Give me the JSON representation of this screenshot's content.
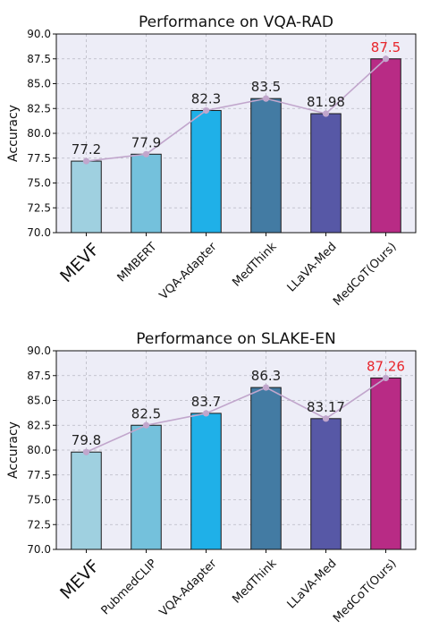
{
  "chart_data": [
    {
      "type": "bar",
      "title": "Performance on VQA-RAD",
      "ylabel": "Accuracy",
      "xlabel": "",
      "ylim": [
        70.0,
        90.0
      ],
      "yticks": [
        "70.0",
        "72.5",
        "75.0",
        "77.5",
        "80.0",
        "82.5",
        "85.0",
        "87.5",
        "90.0"
      ],
      "grid": true,
      "categories": [
        "MEVF",
        "MMBERT",
        "VQA-Adapter",
        "MedThink",
        "LLaVA-Med",
        "MedCoT(Ours)"
      ],
      "values": [
        77.2,
        77.9,
        82.3,
        83.5,
        81.98,
        87.5
      ],
      "value_labels": [
        "77.2",
        "77.9",
        "82.3",
        "83.5",
        "81.98",
        "87.5"
      ],
      "bar_colors": [
        "#9fd0e0",
        "#74c1dc",
        "#1fb0e8",
        "#437ba3",
        "#5758a6",
        "#b82b85"
      ],
      "label_colors": [
        "#222222",
        "#222222",
        "#222222",
        "#222222",
        "#222222",
        "#e8262c"
      ],
      "trend_line": true,
      "trend_color": "#c1a6cc"
    },
    {
      "type": "bar",
      "title": "Performance on SLAKE-EN",
      "ylabel": "Accuracy",
      "xlabel": "",
      "ylim": [
        70.0,
        90.0
      ],
      "yticks": [
        "70.0",
        "72.5",
        "75.0",
        "77.5",
        "80.0",
        "82.5",
        "85.0",
        "87.5",
        "90.0"
      ],
      "grid": true,
      "categories": [
        "MEVF",
        "PubmedCLIP",
        "VQA-Adapter",
        "MedThink",
        "LLaVA-Med",
        "MedCoT(Ours)"
      ],
      "values": [
        79.8,
        82.5,
        83.7,
        86.3,
        83.17,
        87.26
      ],
      "value_labels": [
        "79.8",
        "82.5",
        "83.7",
        "86.3",
        "83.17",
        "87.26"
      ],
      "bar_colors": [
        "#9fd0e0",
        "#74c1dc",
        "#1fb0e8",
        "#437ba3",
        "#5758a6",
        "#b82b85"
      ],
      "label_colors": [
        "#222222",
        "#222222",
        "#222222",
        "#222222",
        "#222222",
        "#e8262c"
      ],
      "trend_line": true,
      "trend_color": "#c1a6cc"
    }
  ]
}
